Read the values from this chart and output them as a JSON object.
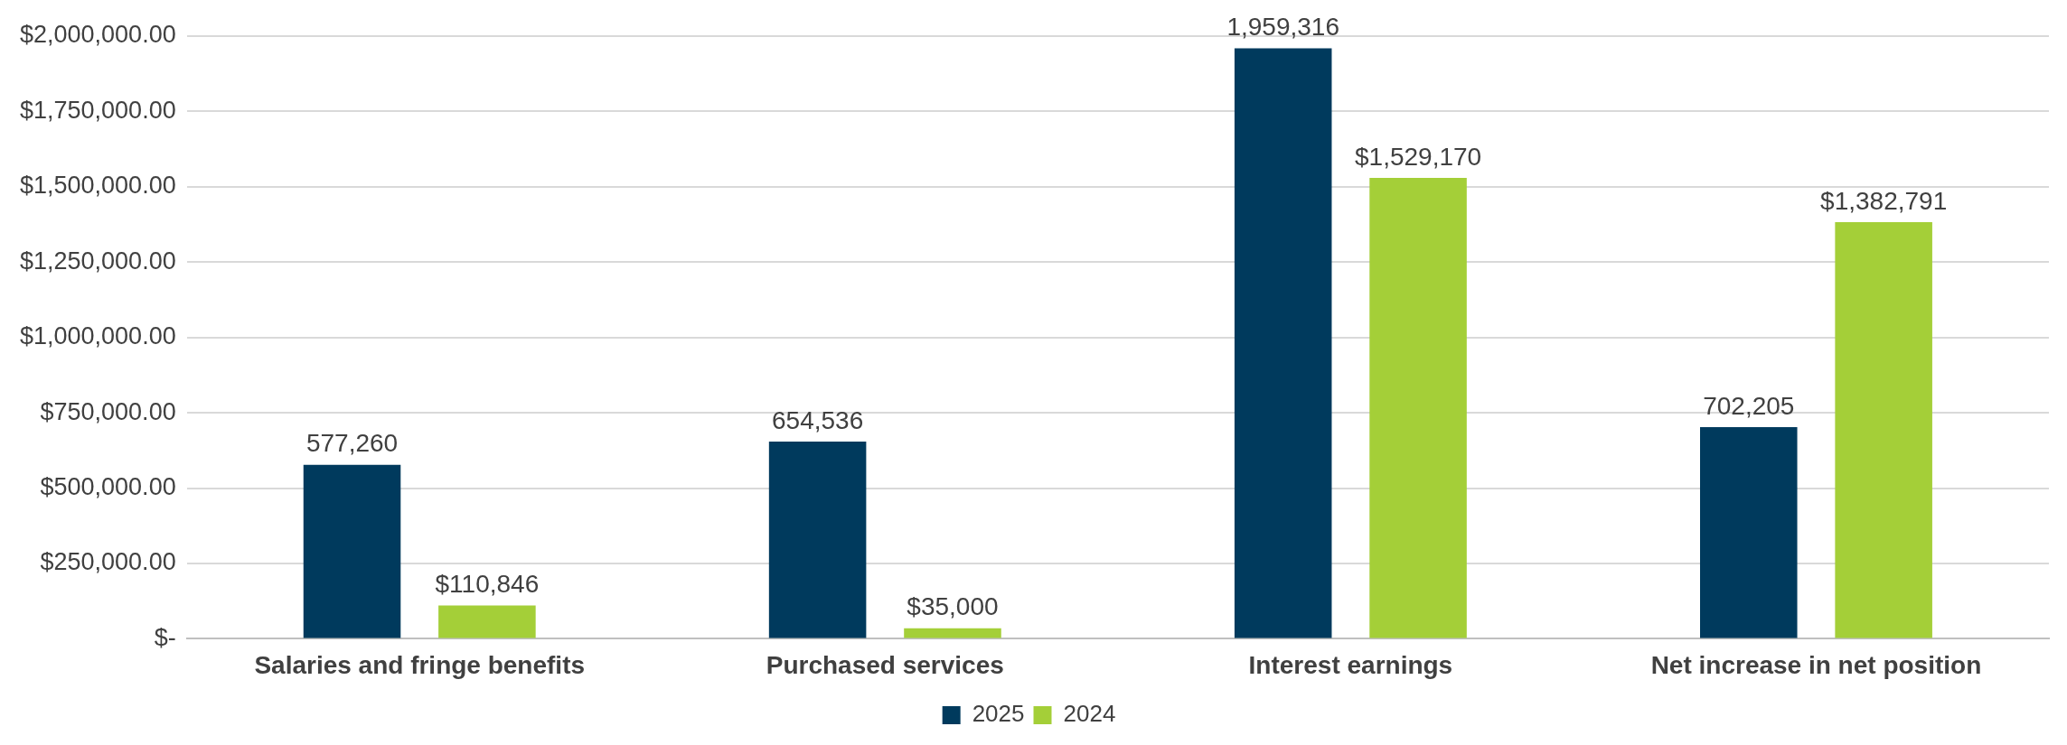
{
  "chart_data": {
    "type": "bar",
    "categories": [
      "Salaries and fringe benefits",
      "Purchased services",
      "Interest earnings",
      "Net increase in net position"
    ],
    "series": [
      {
        "name": "2025",
        "color": "#003a5d",
        "values": [
          577260,
          654536,
          1959316,
          702205
        ],
        "value_labels": [
          "577,260",
          "654,536",
          "1,959,316",
          "702,205"
        ]
      },
      {
        "name": "2024",
        "color": "#a4cf38",
        "values": [
          110846,
          35000,
          1529170,
          1382791
        ],
        "value_labels": [
          "$110,846",
          "$35,000",
          "$1,529,170",
          "$1,382,791"
        ]
      }
    ],
    "ylim": [
      0,
      2000000
    ],
    "yticks": [
      {
        "value": 0,
        "label": "$-"
      },
      {
        "value": 250000,
        "label": "$250,000.00"
      },
      {
        "value": 500000,
        "label": "$500,000.00"
      },
      {
        "value": 750000,
        "label": "$750,000.00"
      },
      {
        "value": 1000000,
        "label": "$1,000,000.00"
      },
      {
        "value": 1250000,
        "label": "$1,250,000.00"
      },
      {
        "value": 1500000,
        "label": "$1,500,000.00"
      },
      {
        "value": 1750000,
        "label": "$1,750,000.00"
      },
      {
        "value": 2000000,
        "label": "$2,000,000.00"
      }
    ],
    "grid": "y",
    "legend": "bottom"
  }
}
